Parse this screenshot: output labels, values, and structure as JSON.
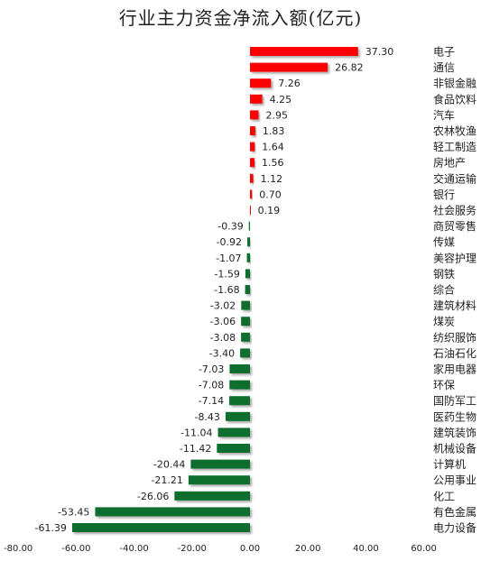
{
  "chart_data": {
    "type": "bar",
    "orientation": "horizontal",
    "title": "行业主力资金净流入额(亿元)",
    "xlim": [
      -80,
      60
    ],
    "xticks": [
      "-80.00",
      "-60.00",
      "-40.00",
      "-20.00",
      "0.00",
      "20.00",
      "40.00",
      "60.00"
    ],
    "xtick_values": [
      -80,
      -60,
      -40,
      -20,
      0,
      20,
      40,
      60
    ],
    "grid": false,
    "colors": {
      "positive": "#ff0000",
      "negative": "#0a6e2e"
    },
    "categories": [
      "电子",
      "通信",
      "非银金融",
      "食品饮料",
      "汽车",
      "农林牧渔",
      "轻工制造",
      "房地产",
      "交通运输",
      "银行",
      "社会服务",
      "商贸零售",
      "传媒",
      "美容护理",
      "钢铁",
      "综合",
      "建筑材料",
      "煤炭",
      "纺织服饰",
      "石油石化",
      "家用电器",
      "环保",
      "国防军工",
      "医药生物",
      "建筑装饰",
      "机械设备",
      "计算机",
      "公用事业",
      "化工",
      "有色金属",
      "电力设备"
    ],
    "values": [
      37.3,
      26.82,
      7.26,
      4.25,
      2.95,
      1.83,
      1.64,
      1.56,
      1.12,
      0.7,
      0.19,
      -0.39,
      -0.92,
      -1.07,
      -1.59,
      -1.68,
      -3.02,
      -3.06,
      -3.08,
      -3.4,
      -7.03,
      -7.08,
      -7.14,
      -8.43,
      -11.04,
      -11.42,
      -20.44,
      -21.21,
      -26.06,
      -53.45,
      -61.39
    ],
    "value_labels": [
      "37.30",
      "26.82",
      "7.26",
      "4.25",
      "2.95",
      "1.83",
      "1.64",
      "1.56",
      "1.12",
      "0.70",
      "0.19",
      "-0.39",
      "-0.92",
      "-1.07",
      "-1.59",
      "-1.68",
      "-3.02",
      "-3.06",
      "-3.08",
      "-3.40",
      "-7.03",
      "-7.08",
      "-7.14",
      "-8.43",
      "-11.04",
      "-11.42",
      "-20.44",
      "-21.21",
      "-26.06",
      "-53.45",
      "-61.39"
    ]
  }
}
